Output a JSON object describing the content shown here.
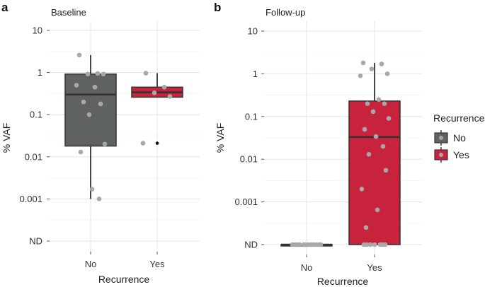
{
  "chart_data": [
    {
      "type": "box",
      "panel_label": "a",
      "title": "Baseline",
      "xlabel": "Recurrence",
      "ylabel": "% VAF",
      "y_scale": "log10",
      "y_ticks": [
        "10",
        "1",
        "0.1",
        "0.01",
        "0.001",
        "ND"
      ],
      "y_tick_values": [
        10,
        1,
        0.1,
        0.01,
        0.001,
        0.0001
      ],
      "categories": [
        "No",
        "Yes"
      ],
      "series": [
        {
          "name": "No",
          "color": "#5e6260",
          "box": {
            "whisker_low": 0.001,
            "q1": 0.018,
            "median": 0.3,
            "q3": 0.92,
            "whisker_high": 2.6
          },
          "outliers": [],
          "points": [
            2.6,
            0.95,
            0.92,
            0.92,
            0.5,
            0.45,
            0.2,
            0.18,
            0.1,
            0.02,
            0.013,
            0.0017,
            0.001
          ]
        },
        {
          "name": "Yes",
          "color": "#c8233d",
          "box": {
            "whisker_low": 0.26,
            "q1": 0.26,
            "median": 0.34,
            "q3": 0.45,
            "whisker_high": 0.97
          },
          "outliers": [
            0.021
          ],
          "points": [
            0.97,
            0.45,
            0.33,
            0.27,
            0.021
          ]
        }
      ]
    },
    {
      "type": "box",
      "panel_label": "b",
      "title": "Follow-up",
      "xlabel": "Recurrence",
      "ylabel": "% VAF",
      "y_scale": "log10",
      "y_ticks": [
        "10",
        "1",
        "0.1",
        "0.01",
        "0.001",
        "ND"
      ],
      "y_tick_values": [
        10,
        1,
        0.1,
        0.01,
        0.001,
        0.0001
      ],
      "categories": [
        "No",
        "Yes"
      ],
      "series": [
        {
          "name": "No",
          "color": "#5e6260",
          "box": {
            "whisker_low": 0.0001,
            "q1": 0.0001,
            "median": 0.0001,
            "q3": 0.0001,
            "whisker_high": 0.0001
          },
          "outliers": [],
          "points": [
            0.0001,
            0.0001,
            0.0001,
            0.0001,
            0.0001,
            0.0001,
            0.0001,
            0.0001,
            0.0001,
            0.0001,
            0.0001,
            0.0001
          ]
        },
        {
          "name": "Yes",
          "color": "#c8233d",
          "box": {
            "whisker_low": 0.0001,
            "q1": 0.0001,
            "median": 0.033,
            "q3": 0.23,
            "whisker_high": 1.8
          },
          "outliers": [],
          "points": [
            1.8,
            1.7,
            1.3,
            1.0,
            0.9,
            0.25,
            0.2,
            0.2,
            0.13,
            0.09,
            0.05,
            0.034,
            0.02,
            0.013,
            0.0055,
            0.002,
            0.00065,
            0.00025,
            0.0001,
            0.0001,
            0.0001,
            0.0001,
            0.0001,
            0.0001,
            0.0001
          ]
        }
      ]
    }
  ],
  "legend": {
    "title": "Recurrence",
    "items": [
      {
        "label": "No",
        "color": "#5e6260"
      },
      {
        "label": "Yes",
        "color": "#c8233d"
      }
    ]
  },
  "point_color": "#a8a8a8",
  "outlier_color": "#111111",
  "line_color": "#333333"
}
